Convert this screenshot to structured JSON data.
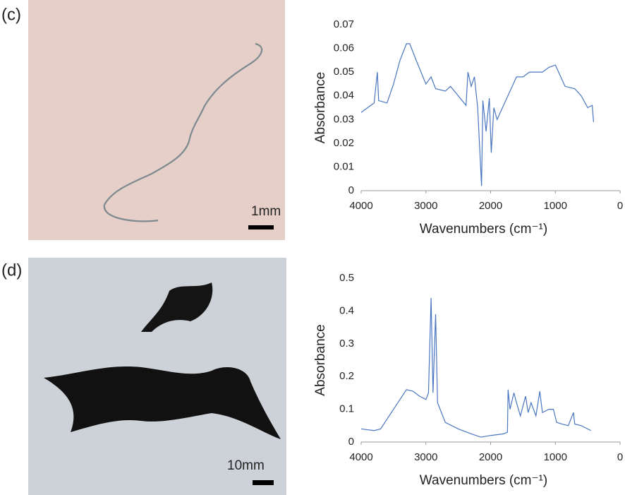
{
  "panels": [
    {
      "label": "(c)",
      "scale_bar": "1mm"
    },
    {
      "label": "(d)",
      "scale_bar": "10mm"
    }
  ],
  "chart_data": [
    {
      "type": "line",
      "xlabel": "Wavenumbers (cm⁻¹)",
      "ylabel": "Absorbance",
      "color": "#4a76c0",
      "xlim": [
        4000,
        0
      ],
      "xticks": [
        4000,
        3000,
        2000,
        1000,
        0
      ],
      "ylim": [
        0,
        0.07
      ],
      "yticks": [
        0,
        0.01,
        0.02,
        0.03,
        0.04,
        0.05,
        0.06,
        0.07
      ],
      "x": [
        4000,
        3900,
        3800,
        3750,
        3730,
        3600,
        3500,
        3400,
        3300,
        3250,
        3150,
        3000,
        2920,
        2850,
        2700,
        2620,
        2500,
        2380,
        2350,
        2300,
        2250,
        2200,
        2140,
        2120,
        2070,
        2020,
        1990,
        1950,
        1900,
        1800,
        1700,
        1600,
        1500,
        1400,
        1300,
        1200,
        1100,
        1000,
        950,
        850,
        700,
        600,
        500,
        430,
        410
      ],
      "values": [
        0.033,
        0.035,
        0.037,
        0.05,
        0.038,
        0.037,
        0.045,
        0.055,
        0.062,
        0.062,
        0.055,
        0.045,
        0.048,
        0.043,
        0.042,
        0.044,
        0.04,
        0.036,
        0.05,
        0.044,
        0.048,
        0.035,
        0.002,
        0.038,
        0.025,
        0.039,
        0.016,
        0.035,
        0.03,
        0.036,
        0.042,
        0.048,
        0.048,
        0.05,
        0.05,
        0.05,
        0.052,
        0.053,
        0.05,
        0.044,
        0.043,
        0.04,
        0.035,
        0.036,
        0.029
      ]
    },
    {
      "type": "line",
      "xlabel": "Wavenumbers (cm⁻¹)",
      "ylabel": "Absorbance",
      "color": "#4a76c0",
      "xlim": [
        4000,
        0
      ],
      "xticks": [
        4000,
        3000,
        2000,
        1000,
        0
      ],
      "ylim": [
        0,
        0.5
      ],
      "yticks": [
        0,
        0.1,
        0.2,
        0.3,
        0.4,
        0.5
      ],
      "x": [
        4000,
        3800,
        3700,
        3500,
        3300,
        3200,
        3100,
        3000,
        2960,
        2920,
        2890,
        2850,
        2820,
        2700,
        2500,
        2300,
        2150,
        2000,
        1800,
        1740,
        1730,
        1700,
        1640,
        1600,
        1540,
        1460,
        1420,
        1375,
        1300,
        1240,
        1200,
        1100,
        1030,
        980,
        900,
        800,
        720,
        700,
        600,
        450
      ],
      "values": [
        0.04,
        0.035,
        0.04,
        0.1,
        0.16,
        0.155,
        0.14,
        0.13,
        0.15,
        0.44,
        0.15,
        0.39,
        0.12,
        0.06,
        0.04,
        0.025,
        0.015,
        0.02,
        0.025,
        0.03,
        0.16,
        0.1,
        0.15,
        0.12,
        0.08,
        0.14,
        0.09,
        0.12,
        0.08,
        0.155,
        0.09,
        0.1,
        0.1,
        0.06,
        0.055,
        0.05,
        0.09,
        0.055,
        0.05,
        0.035
      ]
    }
  ]
}
